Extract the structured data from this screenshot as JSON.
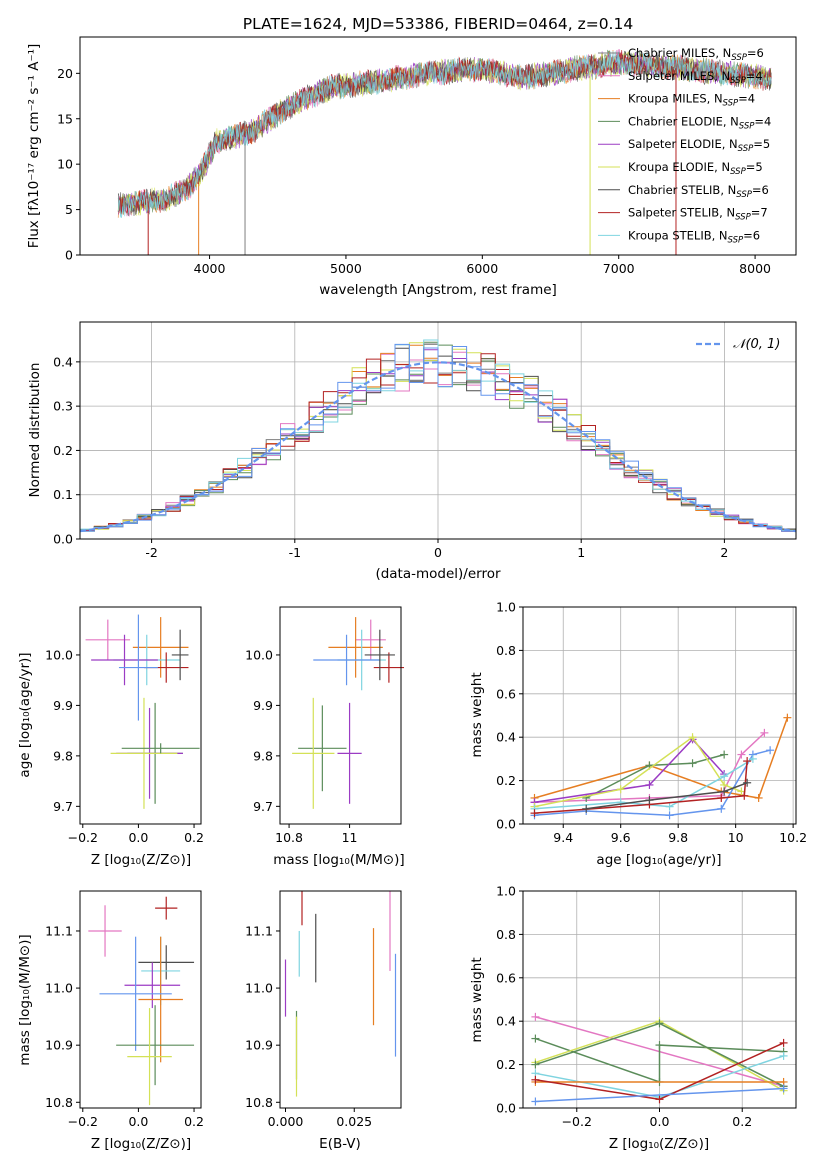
{
  "figure": {
    "title": "PLATE=1624, MJD=53386, FIBERID=0464, z=0.14"
  },
  "colors": {
    "chabrier_miles": "#7f7f7f",
    "salpeter_miles": "#e377c2",
    "kroupa_miles": "#e67e22",
    "chabrier_elodie": "#5b8c5a",
    "salpeter_elodie": "#9b3cc4",
    "kroupa_elodie": "#d4e157",
    "chabrier_stelib": "#4d4d4d",
    "salpeter_stelib": "#b22222",
    "kroupa_stelib": "#7fd4e0",
    "blue": "#6495ed",
    "gauss": "#6495ed"
  },
  "chart_data": [
    {
      "type": "line",
      "panel": "spectrum",
      "title": "PLATE=1624, MJD=53386, FIBERID=0464, z=0.14",
      "xlabel": "wavelength [Angstrom, rest frame]",
      "ylabel": "Flux [fλ10⁻¹⁷ erg cm⁻² s⁻¹ A⁻¹]",
      "xlim": [
        3050,
        8300
      ],
      "ylim": [
        0,
        24
      ],
      "xticks": [
        4000,
        5000,
        6000,
        7000,
        8000
      ],
      "yticks": [
        0,
        5,
        10,
        15,
        20
      ],
      "continuum": [
        [
          3330,
          5.5
        ],
        [
          3500,
          5.8
        ],
        [
          3700,
          6.2
        ],
        [
          3850,
          7.5
        ],
        [
          3950,
          9.5
        ],
        [
          4050,
          12.5
        ],
        [
          4300,
          13.5
        ],
        [
          4600,
          16.5
        ],
        [
          4900,
          18.5
        ],
        [
          5200,
          19.0
        ],
        [
          5600,
          20.0
        ],
        [
          6000,
          20.5
        ],
        [
          6300,
          19.5
        ],
        [
          6600,
          20.3
        ],
        [
          7000,
          21.2
        ],
        [
          7500,
          20.5
        ],
        [
          8000,
          19.6
        ],
        [
          8120,
          19.5
        ]
      ],
      "legend": [
        {
          "label": "Chabrier MILES, N",
          "sub": "SSP",
          "tail": "=6",
          "color_key": "chabrier_miles"
        },
        {
          "label": "Salpeter MILES, N",
          "sub": "SSP",
          "tail": "=4",
          "color_key": "salpeter_miles"
        },
        {
          "label": "Kroupa MILES, N",
          "sub": "SSP",
          "tail": "=4",
          "color_key": "kroupa_miles"
        },
        {
          "label": "Chabrier ELODIE, N",
          "sub": "SSP",
          "tail": "=4",
          "color_key": "chabrier_elodie"
        },
        {
          "label": "Salpeter ELODIE, N",
          "sub": "SSP",
          "tail": "=5",
          "color_key": "salpeter_elodie"
        },
        {
          "label": "Kroupa ELODIE, N",
          "sub": "SSP",
          "tail": "=5",
          "color_key": "kroupa_elodie"
        },
        {
          "label": "Chabrier STELIB, N",
          "sub": "SSP",
          "tail": "=6",
          "color_key": "chabrier_stelib"
        },
        {
          "label": "Salpeter STELIB, N",
          "sub": "SSP",
          "tail": "=7",
          "color_key": "salpeter_stelib"
        },
        {
          "label": "Kroupa STELIB, N",
          "sub": "SSP",
          "tail": "=6",
          "color_key": "kroupa_stelib"
        }
      ],
      "legend_position": "upper-right"
    },
    {
      "type": "histogram",
      "panel": "residuals",
      "xlabel": "(data-model)/error",
      "ylabel": "Normed distribution",
      "xlim": [
        -2.5,
        2.5
      ],
      "ylim": [
        0,
        0.49
      ],
      "xticks": [
        -2,
        -1,
        0,
        1,
        2
      ],
      "yticks": [
        0.0,
        0.1,
        0.2,
        0.3,
        0.4
      ],
      "grid": true,
      "legend": [
        {
          "label": "𝒩(0, 1)",
          "color_key": "gauss",
          "style": "dashed"
        }
      ],
      "legend_position": "upper-right",
      "bin_width": 0.1
    },
    {
      "type": "errorbar",
      "panel": "age_vs_Z",
      "xlabel": "Z [log₁₀(Z/Z⊙)]",
      "ylabel": "age  [log₁₀(age/yr)]",
      "xlim": [
        -0.21,
        0.225
      ],
      "ylim": [
        9.665,
        10.095
      ],
      "xticks": [
        -0.2,
        0.0,
        0.2
      ],
      "xticklabels": [
        "−0.2",
        "0.0",
        "0.2"
      ],
      "yticks": [
        9.7,
        9.8,
        9.9,
        10.0
      ],
      "points": [
        {
          "x": -0.11,
          "xerr": 0.08,
          "y": 10.03,
          "yerr": 0.04,
          "color_key": "salpeter_miles"
        },
        {
          "x": 0.08,
          "xerr": 0.1,
          "y": 10.015,
          "yerr": 0.06,
          "color_key": "kroupa_miles"
        },
        {
          "x": 0.03,
          "xerr": 0.12,
          "y": 9.99,
          "yerr": 0.05,
          "color_key": "kroupa_stelib"
        },
        {
          "x": -0.05,
          "xerr": 0.12,
          "y": 9.99,
          "yerr": 0.05,
          "color_key": "salpeter_elodie"
        },
        {
          "x": 0.1,
          "xerr": 0.08,
          "y": 9.975,
          "yerr": 0.03,
          "color_key": "salpeter_stelib"
        },
        {
          "x": 0.15,
          "xerr": 0.03,
          "y": 10.0,
          "yerr": 0.05,
          "color_key": "chabrier_stelib"
        },
        {
          "x": 0.0,
          "xerr": 0.07,
          "y": 9.975,
          "yerr": 0.105,
          "color_key": "blue"
        },
        {
          "x": 0.06,
          "xerr": 0.1,
          "y": 9.805,
          "yerr": 0.1,
          "color_key": "chabrier_elodie"
        },
        {
          "x": 0.04,
          "xerr": 0.12,
          "y": 9.805,
          "yerr": 0.09,
          "color_key": "salpeter_elodie"
        },
        {
          "x": 0.02,
          "xerr": 0.12,
          "y": 9.805,
          "yerr": 0.11,
          "color_key": "kroupa_elodie"
        },
        {
          "x": 0.08,
          "xerr": 0.14,
          "y": 9.815,
          "yerr": 0.01,
          "color_key": "chabrier_elodie"
        }
      ]
    },
    {
      "type": "errorbar",
      "panel": "age_vs_mass",
      "xlabel": "mass [log₁₀(M/M⊙)]",
      "ylabel": "",
      "xlim": [
        10.77,
        11.17
      ],
      "ylim": [
        9.665,
        10.095
      ],
      "xticks": [
        10.8,
        11.0
      ],
      "yticks": [
        9.7,
        9.8,
        9.9,
        10.0
      ],
      "points": [
        {
          "x": 11.07,
          "xerr": 0.05,
          "y": 10.03,
          "yerr": 0.04,
          "color_key": "salpeter_miles"
        },
        {
          "x": 11.02,
          "xerr": 0.09,
          "y": 10.015,
          "yerr": 0.06,
          "color_key": "kroupa_miles"
        },
        {
          "x": 11.04,
          "xerr": 0.08,
          "y": 9.99,
          "yerr": 0.06,
          "color_key": "kroupa_stelib"
        },
        {
          "x": 10.99,
          "xerr": 0.11,
          "y": 9.99,
          "yerr": 0.05,
          "color_key": "blue"
        },
        {
          "x": 11.13,
          "xerr": 0.05,
          "y": 9.975,
          "yerr": 0.03,
          "color_key": "salpeter_stelib"
        },
        {
          "x": 11.1,
          "xerr": 0.05,
          "y": 10.0,
          "yerr": 0.05,
          "color_key": "chabrier_stelib"
        },
        {
          "x": 11.0,
          "xerr": 0.04,
          "y": 9.805,
          "yerr": 0.1,
          "color_key": "salpeter_elodie"
        },
        {
          "x": 10.91,
          "xerr": 0.08,
          "y": 9.815,
          "yerr": 0.085,
          "color_key": "chabrier_elodie"
        },
        {
          "x": 10.88,
          "xerr": 0.07,
          "y": 9.805,
          "yerr": 0.11,
          "color_key": "kroupa_elodie"
        }
      ]
    },
    {
      "type": "line",
      "panel": "mass_weight_vs_age",
      "xlabel": "age  [log₁₀(age/yr)]",
      "ylabel": "mass weight",
      "xlim": [
        9.26,
        10.21
      ],
      "ylim": [
        0,
        1.0
      ],
      "xticks": [
        9.4,
        9.6,
        9.8,
        10.0,
        10.2
      ],
      "yticks": [
        0.0,
        0.2,
        0.4,
        0.6,
        0.8,
        1.0
      ],
      "grid": true,
      "series": [
        {
          "color_key": "kroupa_miles",
          "x": [
            9.3,
            9.7,
            9.95,
            10.08,
            10.18
          ],
          "y": [
            0.12,
            0.27,
            0.15,
            0.12,
            0.49
          ]
        },
        {
          "color_key": "blue",
          "x": [
            9.3,
            9.48,
            9.77,
            9.95,
            10.06,
            10.12
          ],
          "y": [
            0.04,
            0.06,
            0.04,
            0.07,
            0.32,
            0.34
          ]
        },
        {
          "color_key": "salpeter_miles",
          "x": [
            9.3,
            9.7,
            9.95,
            10.02,
            10.1
          ],
          "y": [
            0.1,
            0.12,
            0.13,
            0.32,
            0.42
          ]
        },
        {
          "color_key": "chabrier_elodie",
          "x": [
            9.48,
            9.7,
            9.85,
            9.96
          ],
          "y": [
            0.12,
            0.27,
            0.28,
            0.32
          ]
        },
        {
          "color_key": "salpeter_elodie",
          "x": [
            9.3,
            9.7,
            9.85,
            9.96
          ],
          "y": [
            0.1,
            0.18,
            0.39,
            0.23
          ]
        },
        {
          "color_key": "kroupa_elodie",
          "x": [
            9.3,
            9.6,
            9.85,
            9.96,
            10.02
          ],
          "y": [
            0.08,
            0.16,
            0.4,
            0.18,
            0.15
          ]
        },
        {
          "color_key": "kroupa_stelib",
          "x": [
            9.3,
            9.6,
            9.77,
            9.96,
            10.06
          ],
          "y": [
            0.07,
            0.1,
            0.08,
            0.22,
            0.3
          ]
        },
        {
          "color_key": "salpeter_stelib",
          "x": [
            9.3,
            9.7,
            9.95,
            10.03,
            10.04
          ],
          "y": [
            0.05,
            0.09,
            0.12,
            0.13,
            0.29
          ]
        },
        {
          "color_key": "chabrier_stelib",
          "x": [
            9.48,
            9.7,
            9.96,
            10.04
          ],
          "y": [
            0.07,
            0.11,
            0.15,
            0.19
          ]
        }
      ]
    },
    {
      "type": "errorbar",
      "panel": "mass_vs_Z",
      "xlabel": "Z [log₁₀(Z/Z⊙)]",
      "ylabel": "mass [log₁₀(M/M⊙)]",
      "xlim": [
        -0.21,
        0.225
      ],
      "ylim": [
        10.79,
        11.17
      ],
      "xticks": [
        -0.2,
        0.0,
        0.2
      ],
      "xticklabels": [
        "−0.2",
        "0.0",
        "0.2"
      ],
      "yticks": [
        10.8,
        10.9,
        11.0,
        11.1
      ],
      "points": [
        {
          "x": 0.1,
          "xerr": 0.04,
          "y": 11.14,
          "yerr": 0.02,
          "color_key": "salpeter_stelib"
        },
        {
          "x": -0.12,
          "xerr": 0.06,
          "y": 11.1,
          "yerr": 0.045,
          "color_key": "salpeter_miles"
        },
        {
          "x": 0.1,
          "xerr": 0.1,
          "y": 11.045,
          "yerr": 0.03,
          "color_key": "chabrier_stelib"
        },
        {
          "x": 0.08,
          "xerr": 0.07,
          "y": 11.03,
          "yerr": 0.06,
          "color_key": "kroupa_stelib"
        },
        {
          "x": 0.05,
          "xerr": 0.1,
          "y": 11.005,
          "yerr": 0.04,
          "color_key": "salpeter_elodie"
        },
        {
          "x": 0.08,
          "xerr": 0.08,
          "y": 10.98,
          "yerr": 0.11,
          "color_key": "kroupa_miles"
        },
        {
          "x": -0.01,
          "xerr": 0.13,
          "y": 10.99,
          "yerr": 0.1,
          "color_key": "blue"
        },
        {
          "x": 0.06,
          "xerr": 0.14,
          "y": 10.9,
          "yerr": 0.07,
          "color_key": "chabrier_elodie"
        },
        {
          "x": 0.04,
          "xerr": 0.08,
          "y": 10.88,
          "yerr": 0.085,
          "color_key": "kroupa_elodie"
        }
      ]
    },
    {
      "type": "errorbar",
      "panel": "mass_vs_ebv",
      "xlabel": "E(B-V)",
      "ylabel": "",
      "xlim": [
        -0.002,
        0.042
      ],
      "ylim": [
        10.79,
        11.17
      ],
      "xticks": [
        0.0,
        0.025
      ],
      "xticklabels": [
        "0.000",
        "0.025"
      ],
      "yticks": [
        10.8,
        10.9,
        11.0,
        11.1
      ],
      "points": [
        {
          "x": 0.0,
          "y": 11.0,
          "yerr": 0.05,
          "color_key": "salpeter_elodie"
        },
        {
          "x": 0.006,
          "y": 11.14,
          "yerr": 0.03,
          "color_key": "salpeter_stelib"
        },
        {
          "x": 0.011,
          "y": 11.07,
          "yerr": 0.06,
          "color_key": "chabrier_stelib"
        },
        {
          "x": 0.005,
          "y": 11.06,
          "yerr": 0.04,
          "color_key": "kroupa_stelib"
        },
        {
          "x": 0.004,
          "y": 10.9,
          "yerr": 0.06,
          "color_key": "chabrier_elodie"
        },
        {
          "x": 0.004,
          "y": 10.88,
          "yerr": 0.07,
          "color_key": "kroupa_elodie"
        },
        {
          "x": 0.032,
          "y": 11.02,
          "yerr": 0.085,
          "color_key": "kroupa_miles"
        },
        {
          "x": 0.038,
          "y": 11.1,
          "yerr": 0.07,
          "color_key": "salpeter_miles"
        },
        {
          "x": 0.04,
          "y": 10.97,
          "yerr": 0.09,
          "color_key": "blue"
        }
      ]
    },
    {
      "type": "line",
      "panel": "mass_weight_vs_Z",
      "xlabel": "Z [log₁₀(Z/Z⊙)]",
      "ylabel": "mass weight",
      "xlim": [
        -0.33,
        0.33
      ],
      "ylim": [
        0,
        1.0
      ],
      "xticks": [
        -0.2,
        0.0,
        0.2
      ],
      "xticklabels": [
        "−0.2",
        "0.0",
        "0.2"
      ],
      "yticks": [
        0.0,
        0.2,
        0.4,
        0.6,
        0.8,
        1.0
      ],
      "grid": true,
      "series": [
        {
          "color_key": "salpeter_miles",
          "x": [
            -0.3,
            0.3
          ],
          "y": [
            0.42,
            0.1
          ]
        },
        {
          "color_key": "chabrier_elodie",
          "x": [
            -0.3,
            0.0,
            0.0,
            0.3
          ],
          "y": [
            0.32,
            0.12,
            0.29,
            0.26
          ]
        },
        {
          "color_key": "kroupa_elodie",
          "x": [
            -0.3,
            0.0,
            0.3
          ],
          "y": [
            0.21,
            0.4,
            0.08
          ]
        },
        {
          "color_key": "chabrier_elodie",
          "x": [
            -0.3,
            0.0,
            0.3
          ],
          "y": [
            0.2,
            0.39,
            0.1
          ]
        },
        {
          "color_key": "kroupa_stelib",
          "x": [
            -0.3,
            0.0,
            0.3
          ],
          "y": [
            0.16,
            0.05,
            0.24
          ]
        },
        {
          "color_key": "kroupa_miles",
          "x": [
            -0.3,
            0.3
          ],
          "y": [
            0.12,
            0.12
          ]
        },
        {
          "color_key": "salpeter_stelib",
          "x": [
            -0.3,
            0.0,
            0.3
          ],
          "y": [
            0.13,
            0.04,
            0.3
          ]
        },
        {
          "color_key": "blue",
          "x": [
            -0.3,
            0.3
          ],
          "y": [
            0.03,
            0.09
          ]
        }
      ]
    }
  ]
}
